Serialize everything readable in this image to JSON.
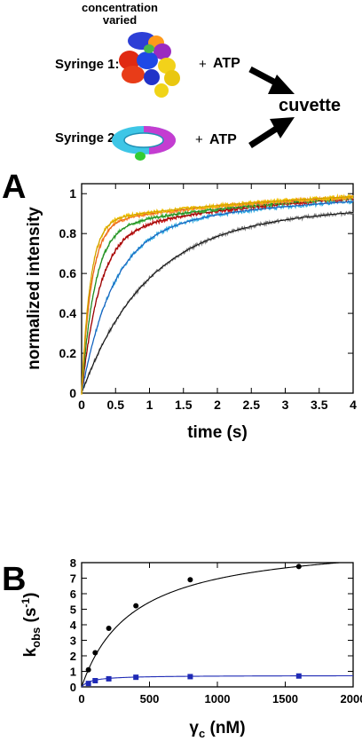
{
  "scheme": {
    "concentration_label_line1": "concentration",
    "concentration_label_line2": "varied",
    "syringe1_label": "Syringe 1:",
    "syringe2_label": "Syringe 2:",
    "plus": "+",
    "atp": "ATP",
    "cuvette": "cuvette"
  },
  "panels": {
    "a": "A",
    "b": "B"
  },
  "chart_data": [
    {
      "type": "line",
      "panel": "A",
      "xlabel": "time (s)",
      "ylabel": "normalized intensity",
      "xlim": [
        0,
        4
      ],
      "ylim": [
        0,
        1.05
      ],
      "x_ticks": [
        "0",
        "0.5",
        "1",
        "1.5",
        "2",
        "2.5",
        "3",
        "3.5",
        "4"
      ],
      "y_ticks": [
        "0",
        "0.2",
        "0.4",
        "0.6",
        "0.8",
        "1"
      ],
      "grid": false,
      "legend": "none",
      "series": [
        {
          "color": "#7a7a7a",
          "fit_color": "#000000",
          "k_fast": 1.1,
          "amp_fast": 0.8,
          "k_slow": 0.3,
          "x_end": 4,
          "y_end": 0.915
        },
        {
          "color": "#29a8e0",
          "fit_color": "#1a4fb5",
          "k_fast": 2.2,
          "amp_fast": 0.8,
          "k_slow": 0.3,
          "x_end": 4,
          "y_end": 0.96
        },
        {
          "color": "#c81818",
          "fit_color": "#8b0000",
          "k_fast": 3.8,
          "amp_fast": 0.8,
          "k_slow": 0.3,
          "x_end": 4,
          "y_end": 0.975
        },
        {
          "color": "#3cb43c",
          "fit_color": "#1e7f1e",
          "k_fast": 5.2,
          "amp_fast": 0.82,
          "k_slow": 0.3,
          "x_end": 4,
          "y_end": 0.978
        },
        {
          "color": "#ff8c3a",
          "fit_color": "#e05a10",
          "k_fast": 6.9,
          "amp_fast": 0.85,
          "k_slow": 0.3,
          "x_end": 4,
          "y_end": 0.982
        },
        {
          "color": "#f0c000",
          "fit_color": "#c89a00",
          "k_fast": 7.8,
          "amp_fast": 0.86,
          "k_slow": 0.3,
          "x_end": 4,
          "y_end": 0.985
        }
      ]
    },
    {
      "type": "scatter",
      "panel": "B",
      "xlabel": "γc (nM)",
      "ylabel": "kobs (s-1)",
      "xlim": [
        0,
        2000
      ],
      "ylim": [
        0,
        8
      ],
      "x_ticks": [
        "0",
        "500",
        "1000",
        "1500",
        "2000"
      ],
      "y_ticks": [
        "0",
        "1",
        "2",
        "3",
        "4",
        "5",
        "6",
        "7",
        "8"
      ],
      "grid": false,
      "legend": "none",
      "series": [
        {
          "color": "#000000",
          "marker": "circle",
          "x": [
            50,
            100,
            200,
            400,
            800,
            1600
          ],
          "y": [
            1.1,
            2.2,
            3.77,
            5.22,
            6.9,
            7.75
          ],
          "fit": {
            "vmax": 9.6,
            "km": 380
          }
        },
        {
          "color": "#1f2ab5",
          "marker": "square",
          "x": [
            50,
            100,
            200,
            400,
            800,
            1600
          ],
          "y": [
            0.22,
            0.4,
            0.52,
            0.62,
            0.66,
            0.7
          ],
          "fit": {
            "vmax": 0.74,
            "km": 70
          }
        }
      ]
    }
  ]
}
